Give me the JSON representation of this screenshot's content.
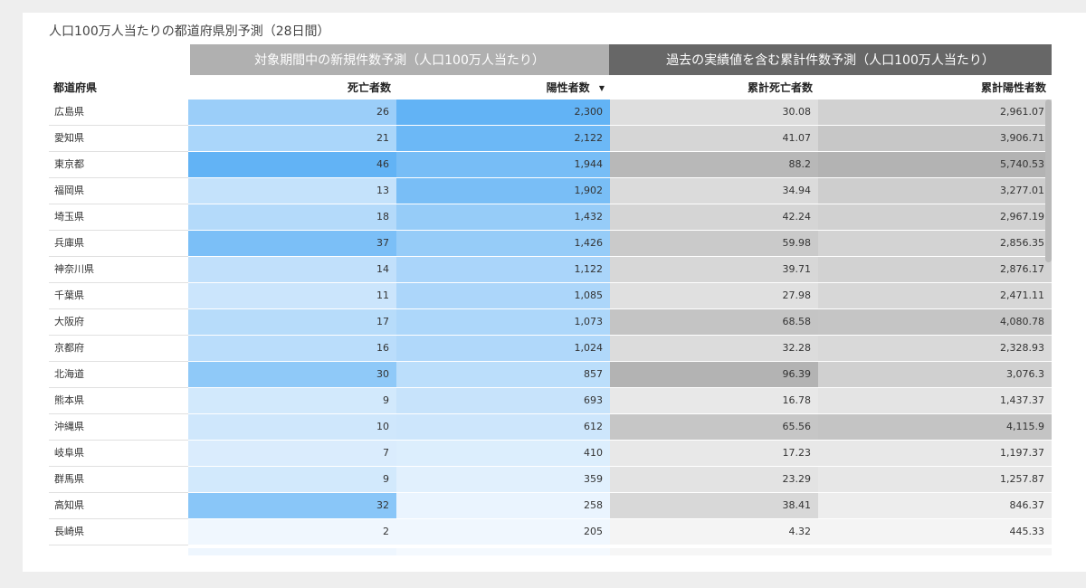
{
  "title": "人口100万人当たりの都道府県別予測（28日間）",
  "groups": {
    "new": "対象期間中の新規件数予測（人口100万人当たり）",
    "cumulative": "過去の実績値を含む累計件数予測（人口100万人当たり）"
  },
  "headers": {
    "pref": "都道府県",
    "deaths": "死亡者数",
    "positives": "陽性者数",
    "cum_deaths": "累計死亡者数",
    "cum_positives": "累計陽性者数"
  },
  "sort_indicator": "▼",
  "rows": [
    {
      "pref": "広島県",
      "deaths": "26",
      "positives": "2,300",
      "cum_deaths": "30.08",
      "cum_positives": "2,961.07"
    },
    {
      "pref": "愛知県",
      "deaths": "21",
      "positives": "2,122",
      "cum_deaths": "41.07",
      "cum_positives": "3,906.71"
    },
    {
      "pref": "東京都",
      "deaths": "46",
      "positives": "1,944",
      "cum_deaths": "88.2",
      "cum_positives": "5,740.53"
    },
    {
      "pref": "福岡県",
      "deaths": "13",
      "positives": "1,902",
      "cum_deaths": "34.94",
      "cum_positives": "3,277.01"
    },
    {
      "pref": "埼玉県",
      "deaths": "18",
      "positives": "1,432",
      "cum_deaths": "42.24",
      "cum_positives": "2,967.19"
    },
    {
      "pref": "兵庫県",
      "deaths": "37",
      "positives": "1,426",
      "cum_deaths": "59.98",
      "cum_positives": "2,856.35"
    },
    {
      "pref": "神奈川県",
      "deaths": "14",
      "positives": "1,122",
      "cum_deaths": "39.71",
      "cum_positives": "2,876.17"
    },
    {
      "pref": "千葉県",
      "deaths": "11",
      "positives": "1,085",
      "cum_deaths": "27.98",
      "cum_positives": "2,471.11"
    },
    {
      "pref": "大阪府",
      "deaths": "17",
      "positives": "1,073",
      "cum_deaths": "68.58",
      "cum_positives": "4,080.78"
    },
    {
      "pref": "京都府",
      "deaths": "16",
      "positives": "1,024",
      "cum_deaths": "32.28",
      "cum_positives": "2,328.93"
    },
    {
      "pref": "北海道",
      "deaths": "30",
      "positives": "857",
      "cum_deaths": "96.39",
      "cum_positives": "3,076.3"
    },
    {
      "pref": "熊本県",
      "deaths": "9",
      "positives": "693",
      "cum_deaths": "16.78",
      "cum_positives": "1,437.37"
    },
    {
      "pref": "沖縄県",
      "deaths": "10",
      "positives": "612",
      "cum_deaths": "65.56",
      "cum_positives": "4,115.9"
    },
    {
      "pref": "岐阜県",
      "deaths": "7",
      "positives": "410",
      "cum_deaths": "17.23",
      "cum_positives": "1,197.37"
    },
    {
      "pref": "群馬県",
      "deaths": "9",
      "positives": "359",
      "cum_deaths": "23.29",
      "cum_positives": "1,257.87"
    },
    {
      "pref": "高知県",
      "deaths": "32",
      "positives": "258",
      "cum_deaths": "38.41",
      "cum_positives": "846.37"
    },
    {
      "pref": "長崎県",
      "deaths": "2",
      "positives": "205",
      "cum_deaths": "4.32",
      "cum_positives": "445.33"
    }
  ],
  "colors": {
    "blue_scale": [
      "#f0f7fe",
      "#62b3f5"
    ],
    "gray_scale": [
      "#f4f4f4",
      "#b3b3b3"
    ],
    "group_new_bg": "#b0b0b0",
    "group_cum_bg": "#676767"
  }
}
